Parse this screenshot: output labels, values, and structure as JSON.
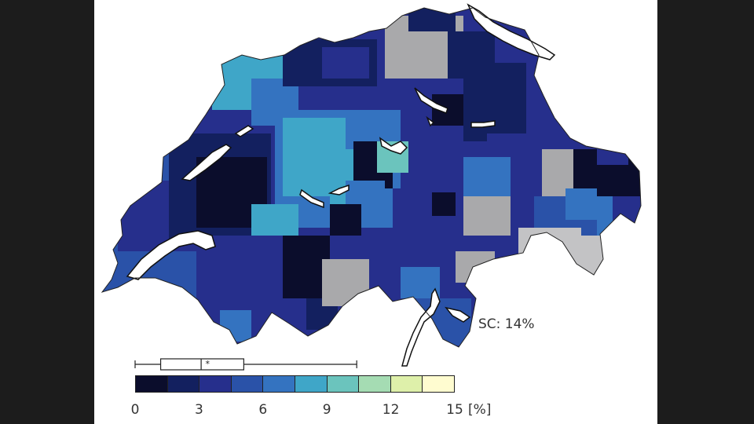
{
  "map": {
    "annotation": "SC: 14%",
    "colors": {
      "no_data": "#a9a9ab",
      "lakes": "#ffffff",
      "outline": "#111111"
    }
  },
  "colorbar": {
    "min": 0,
    "max": 15,
    "bins": [
      "#0b0d2c",
      "#13205f",
      "#262f8c",
      "#2a52a8",
      "#3473c0",
      "#3fa6c8",
      "#6bc4bd",
      "#a5dcb3",
      "#def0aa",
      "#fffcd0"
    ],
    "ticks": [
      "0",
      "3",
      "6",
      "9",
      "12",
      "15"
    ],
    "unit": "[%]"
  },
  "boxplot": {
    "whisker_min": 0,
    "q1": 1.2,
    "median": 3.1,
    "mean": 3.4,
    "q3": 5.1,
    "whisker_max": 10.4
  }
}
